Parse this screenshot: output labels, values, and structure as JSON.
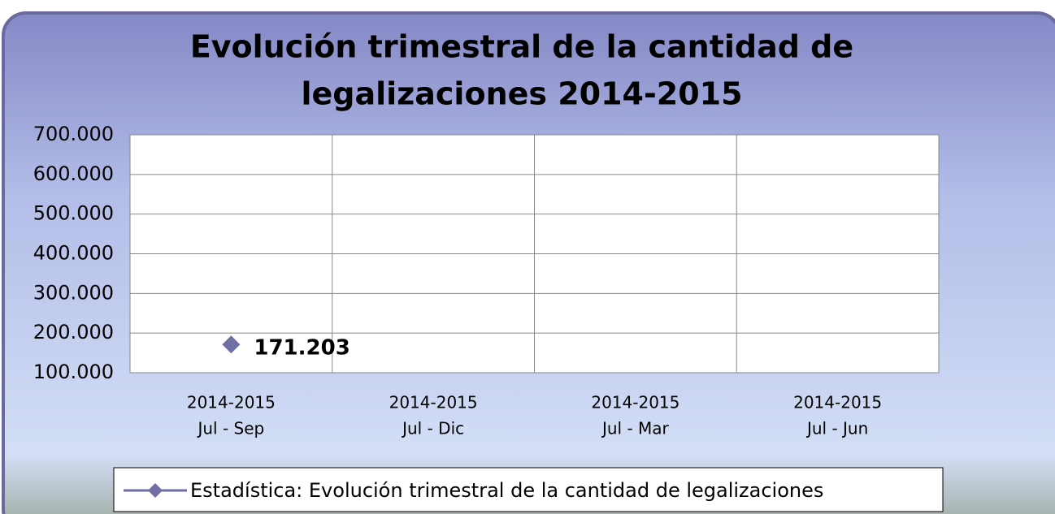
{
  "chart_data": {
    "type": "line",
    "title": [
      "Evolución trimestral de la cantidad de",
      "legalizaciones 2014-2015"
    ],
    "categories": [
      [
        "2014-2015",
        "Jul - Sep"
      ],
      [
        "2014-2015",
        "Jul - Dic"
      ],
      [
        "2014-2015",
        "Jul - Mar"
      ],
      [
        "2014-2015",
        "Jul - Jun"
      ]
    ],
    "series": [
      {
        "name": "Estadística: Evolución trimestral de la cantidad de legalizaciones",
        "color": "#6f6fa6",
        "values": [
          171203,
          null,
          null,
          null
        ],
        "value_labels": [
          "171.203",
          null,
          null,
          null
        ]
      }
    ],
    "ylim": [
      100000,
      700000
    ],
    "yticks": [
      {
        "value": 100000,
        "label": "100.000"
      },
      {
        "value": 200000,
        "label": "200.000"
      },
      {
        "value": 300000,
        "label": "300.000"
      },
      {
        "value": 400000,
        "label": "400.000"
      },
      {
        "value": 500000,
        "label": "500.000"
      },
      {
        "value": 600000,
        "label": "600.000"
      },
      {
        "value": 700000,
        "label": "700.000"
      }
    ],
    "grid": true,
    "legend": "bottom"
  }
}
